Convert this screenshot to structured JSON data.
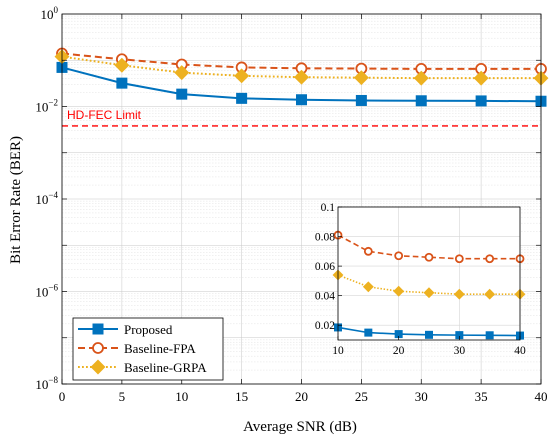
{
  "chart_data": {
    "main": {
      "type": "line",
      "xlabel": "Average SNR (dB)",
      "ylabel": "Bit Error Rate (BER)",
      "xlim": [
        0,
        40
      ],
      "ylim": [
        1e-08,
        1
      ],
      "yscale": "log",
      "grid": true,
      "legend_position": "bottom-left",
      "x_ticks": [
        "0",
        "5",
        "10",
        "15",
        "20",
        "25",
        "30",
        "35",
        "40"
      ],
      "y_ticks": [
        {
          "base": "10",
          "exp": "0"
        },
        {
          "base": "10",
          "exp": "−2"
        },
        {
          "base": "10",
          "exp": "−4"
        },
        {
          "base": "10",
          "exp": "−6"
        },
        {
          "base": "10",
          "exp": "−8"
        }
      ],
      "x": [
        0,
        5,
        10,
        15,
        20,
        25,
        30,
        35,
        40
      ],
      "series": [
        {
          "name": "Proposed",
          "color": "#0072BD",
          "marker": "square",
          "style": "solid",
          "values": [
            0.07,
            0.032,
            0.0185,
            0.015,
            0.014,
            0.0135,
            0.0133,
            0.0132,
            0.013
          ]
        },
        {
          "name": "Baseline-FPA",
          "color": "#D95319",
          "marker": "circle",
          "style": "dashed",
          "values": [
            0.14,
            0.105,
            0.081,
            0.07,
            0.067,
            0.066,
            0.065,
            0.065,
            0.065
          ]
        },
        {
          "name": "Baseline-GRPA",
          "color": "#EDB120",
          "marker": "diamond",
          "style": "dotted",
          "values": [
            0.12,
            0.078,
            0.054,
            0.046,
            0.043,
            0.042,
            0.041,
            0.041,
            0.041
          ]
        }
      ],
      "annotation": {
        "text": "HD-FEC Limit",
        "value": 0.0038,
        "color": "#FF0000"
      }
    },
    "inset": {
      "type": "line",
      "xlim": [
        10,
        40
      ],
      "ylim": [
        0.01,
        0.1
      ],
      "x_ticks": [
        "10",
        "20",
        "30",
        "40"
      ],
      "y_ticks": [
        "0.02",
        "0.04",
        "0.06",
        "0.08",
        "0.1"
      ],
      "x": [
        10,
        15,
        20,
        25,
        30,
        35,
        40
      ],
      "series": [
        {
          "name": "Proposed",
          "values": [
            0.0185,
            0.015,
            0.014,
            0.0135,
            0.0133,
            0.0132,
            0.013
          ]
        },
        {
          "name": "Baseline-FPA",
          "values": [
            0.081,
            0.07,
            0.067,
            0.066,
            0.065,
            0.065,
            0.065
          ]
        },
        {
          "name": "Baseline-GRPA",
          "values": [
            0.054,
            0.046,
            0.043,
            0.042,
            0.041,
            0.041,
            0.041
          ]
        }
      ]
    }
  }
}
